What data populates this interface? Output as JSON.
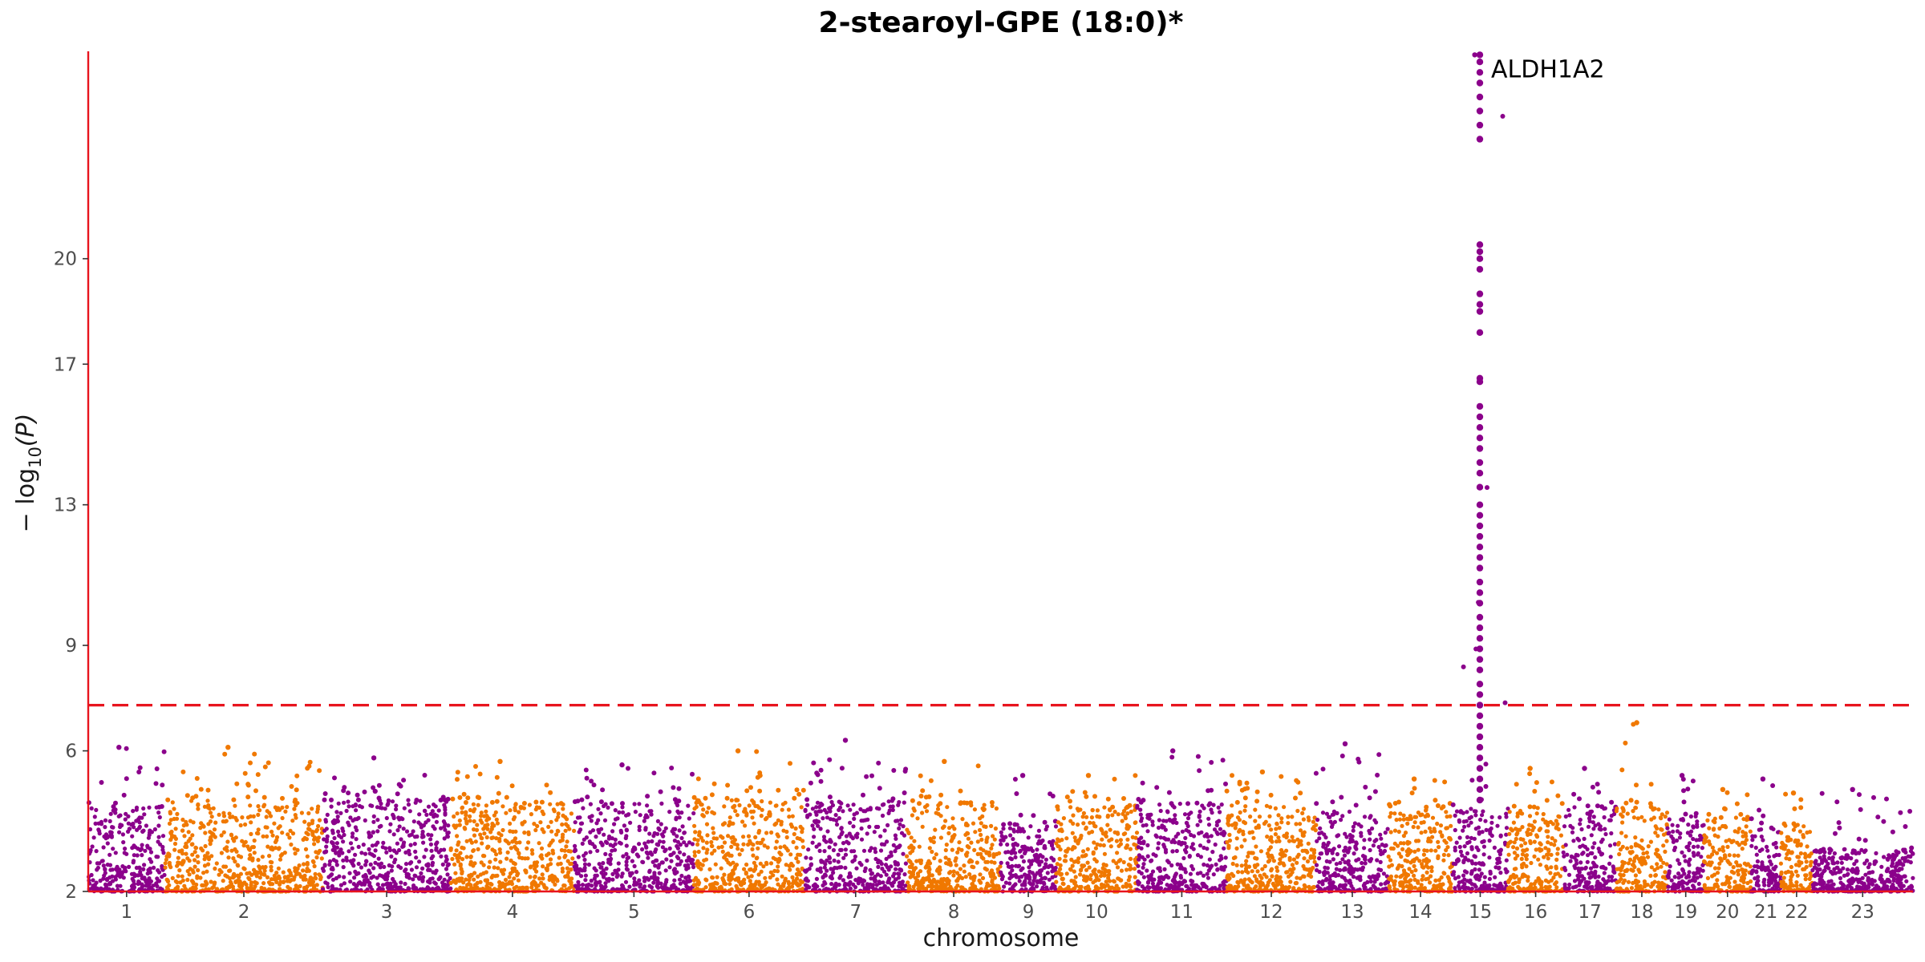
{
  "chart_data": {
    "type": "scatter",
    "title": "2-stearoyl-GPE (18:0)*",
    "xlabel": "chromosome",
    "ylabel_main": "− log",
    "ylabel_sub": "10",
    "ylabel_tail": "(P)",
    "ylim": [
      2,
      25.9
    ],
    "y_ticks": [
      2,
      6,
      9,
      13,
      17,
      20
    ],
    "significance_threshold": 7.3,
    "grid": false,
    "colors": {
      "odd": "#8b008b",
      "even": "#f07800",
      "axis": "#e8141e",
      "threshold": "#e8141e"
    },
    "chromosomes": [
      {
        "label": "1",
        "start": 0,
        "end": 90,
        "base_max": 4.4,
        "peak": 6.1
      },
      {
        "label": "2",
        "start": 90,
        "end": 275,
        "base_max": 4.6,
        "peak": 6.1
      },
      {
        "label": "3",
        "start": 275,
        "end": 425,
        "base_max": 4.6,
        "peak": 5.8
      },
      {
        "label": "4",
        "start": 425,
        "end": 570,
        "base_max": 4.5,
        "peak": 5.7
      },
      {
        "label": "5",
        "start": 570,
        "end": 710,
        "base_max": 4.5,
        "peak": 5.6
      },
      {
        "label": "6",
        "start": 710,
        "end": 840,
        "base_max": 4.6,
        "peak": 6.0
      },
      {
        "label": "7",
        "start": 840,
        "end": 960,
        "base_max": 4.6,
        "peak": 6.3
      },
      {
        "label": "8",
        "start": 960,
        "end": 1070,
        "base_max": 4.5,
        "peak": 5.7
      },
      {
        "label": "9",
        "start": 1070,
        "end": 1135,
        "base_max": 3.9,
        "peak": 5.3
      },
      {
        "label": "10",
        "start": 1135,
        "end": 1230,
        "base_max": 4.4,
        "peak": 5.3
      },
      {
        "label": "11",
        "start": 1230,
        "end": 1335,
        "base_max": 4.5,
        "peak": 6.0
      },
      {
        "label": "12",
        "start": 1335,
        "end": 1440,
        "base_max": 4.5,
        "peak": 5.4
      },
      {
        "label": "13",
        "start": 1440,
        "end": 1525,
        "base_max": 4.3,
        "peak": 6.2
      },
      {
        "label": "14",
        "start": 1525,
        "end": 1600,
        "base_max": 4.4,
        "peak": 5.2
      },
      {
        "label": "15",
        "start": 1600,
        "end": 1665,
        "base_max": 4.4,
        "peak": 25.8
      },
      {
        "label": "16",
        "start": 1665,
        "end": 1730,
        "base_max": 4.4,
        "peak": 5.5
      },
      {
        "label": "17",
        "start": 1730,
        "end": 1792,
        "base_max": 4.4,
        "peak": 5.5
      },
      {
        "label": "18",
        "start": 1792,
        "end": 1852,
        "base_max": 4.4,
        "peak": 6.8
      },
      {
        "label": "19",
        "start": 1852,
        "end": 1895,
        "base_max": 4.2,
        "peak": 5.3
      },
      {
        "label": "20",
        "start": 1895,
        "end": 1950,
        "base_max": 4.1,
        "peak": 4.9
      },
      {
        "label": "21",
        "start": 1950,
        "end": 1985,
        "base_max": 3.8,
        "peak": 5.2
      },
      {
        "label": "22",
        "start": 1985,
        "end": 2022,
        "base_max": 3.9,
        "peak": 4.8
      },
      {
        "label": "23",
        "start": 2022,
        "end": 2140,
        "base_max": 3.2,
        "peak": 4.9
      }
    ],
    "lead_signal": {
      "chromosome": "15",
      "position": 1632,
      "gene": "ALDH1A2",
      "values": [
        25.8,
        25.6,
        25.3,
        25.0,
        24.6,
        24.2,
        23.8,
        23.4,
        20.4,
        20.2,
        20.0,
        19.7,
        19.0,
        18.7,
        18.5,
        17.9,
        16.6,
        16.5,
        15.8,
        15.5,
        15.2,
        14.9,
        14.6,
        14.2,
        13.9,
        13.5,
        13.0,
        12.7,
        12.4,
        12.1,
        11.8,
        11.5,
        11.2,
        10.8,
        10.5,
        10.2,
        9.8,
        9.5,
        9.2,
        8.9,
        8.6,
        8.3,
        7.9,
        7.6,
        7.3,
        7.0,
        6.7,
        6.4,
        6.1,
        5.8,
        5.5,
        5.2,
        4.9,
        4.6
      ]
    }
  }
}
